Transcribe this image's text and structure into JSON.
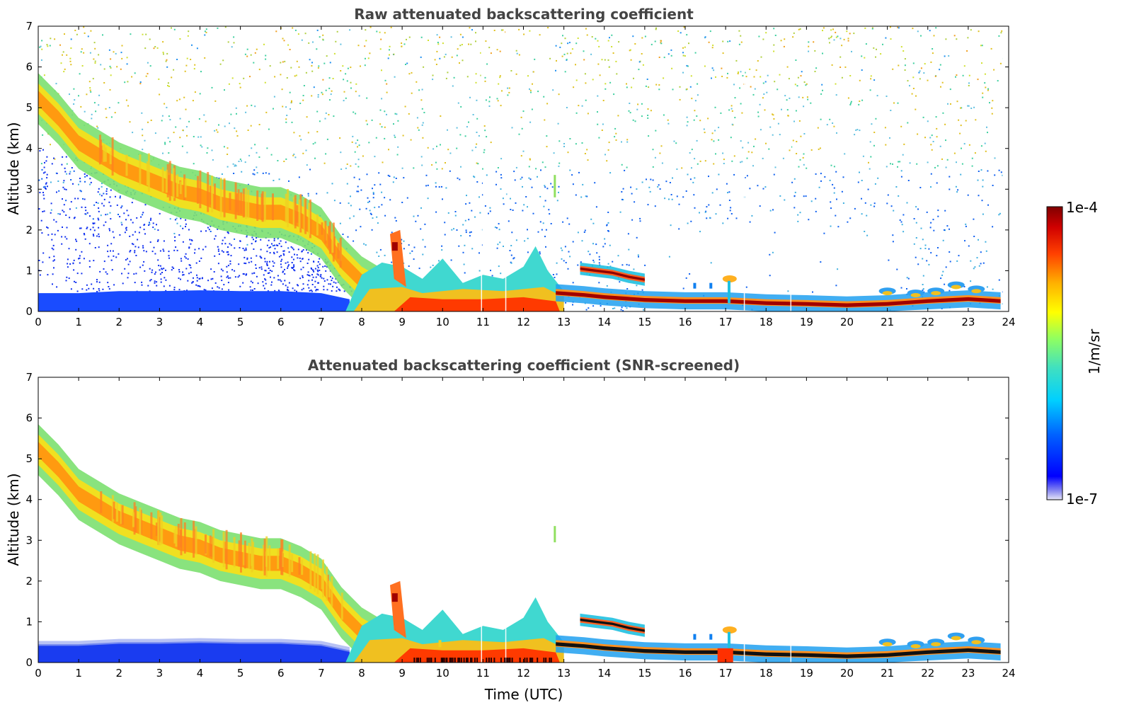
{
  "chart_data": [
    {
      "type": "heatmap",
      "title": "Raw attenuated backscattering coefficient",
      "xlabel": "",
      "ylabel": "Altitude (km)",
      "xlim": [
        0,
        24
      ],
      "ylim": [
        0,
        7
      ],
      "xticks": [
        "0",
        "1",
        "2",
        "3",
        "4",
        "5",
        "6",
        "7",
        "8",
        "9",
        "10",
        "11",
        "12",
        "13",
        "14",
        "15",
        "16",
        "17",
        "18",
        "19",
        "20",
        "21",
        "22",
        "23",
        "24"
      ],
      "yticks": [
        "0",
        "1",
        "2",
        "3",
        "4",
        "5",
        "6",
        "7"
      ],
      "grid": false,
      "noise_level": "high"
    },
    {
      "type": "heatmap",
      "title": "Attenuated backscattering coefficient (SNR-screened)",
      "xlabel": "Time (UTC)",
      "ylabel": "Altitude (km)",
      "xlim": [
        0,
        24
      ],
      "ylim": [
        0,
        7
      ],
      "xticks": [
        "0",
        "1",
        "2",
        "3",
        "4",
        "5",
        "6",
        "7",
        "8",
        "9",
        "10",
        "11",
        "12",
        "13",
        "14",
        "15",
        "16",
        "17",
        "18",
        "19",
        "20",
        "21",
        "22",
        "23",
        "24"
      ],
      "yticks": [
        "0",
        "1",
        "2",
        "3",
        "4",
        "5",
        "6",
        "7"
      ],
      "grid": false,
      "noise_level": "screened"
    }
  ],
  "colorbar": {
    "top_label": "1e-4",
    "bottom_label": "1e-7",
    "unit_label": "1/m/sr",
    "scale": "log",
    "colormap": "jet",
    "range": [
      1e-07,
      0.0001
    ]
  },
  "features": {
    "descending_aerosol_layer": [
      [
        0,
        5.3
      ],
      [
        0.5,
        4.8
      ],
      [
        1,
        4.2
      ],
      [
        1.5,
        3.9
      ],
      [
        2,
        3.6
      ],
      [
        2.5,
        3.4
      ],
      [
        3,
        3.2
      ],
      [
        3.5,
        3.0
      ],
      [
        4,
        2.9
      ],
      [
        4.5,
        2.7
      ],
      [
        5,
        2.6
      ],
      [
        5.5,
        2.5
      ],
      [
        6,
        2.5
      ],
      [
        6.5,
        2.3
      ],
      [
        7,
        2.0
      ],
      [
        7.5,
        1.3
      ],
      [
        8,
        0.8
      ],
      [
        8.5,
        0.5
      ],
      [
        9,
        0.2
      ]
    ],
    "boundary_layer_top": [
      [
        0,
        0.45
      ],
      [
        1,
        0.45
      ],
      [
        2,
        0.5
      ],
      [
        3,
        0.5
      ],
      [
        4,
        0.52
      ],
      [
        5,
        0.5
      ],
      [
        6,
        0.5
      ],
      [
        7,
        0.45
      ],
      [
        7.7,
        0.3
      ]
    ],
    "cloud_line": [
      [
        12.8,
        0.45
      ],
      [
        13.5,
        0.4
      ],
      [
        14,
        0.35
      ],
      [
        15,
        0.28
      ],
      [
        16,
        0.25
      ],
      [
        17,
        0.25
      ],
      [
        18,
        0.2
      ],
      [
        19,
        0.18
      ],
      [
        20,
        0.15
      ],
      [
        21,
        0.18
      ],
      [
        22,
        0.25
      ],
      [
        23,
        0.3
      ],
      [
        23.8,
        0.25
      ]
    ],
    "elevated_cloud": [
      [
        13.4,
        1.05
      ],
      [
        13.8,
        1.0
      ],
      [
        14.2,
        0.95
      ],
      [
        14.6,
        0.85
      ],
      [
        15,
        0.78
      ]
    ]
  }
}
